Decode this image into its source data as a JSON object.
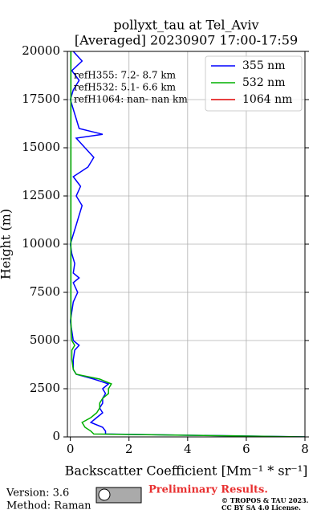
{
  "chart_data": {
    "type": "line",
    "title": "pollyxt_tau at Tel_Aviv",
    "subtitle": "[Averaged] 20230907 17:00-17:59",
    "x_label": "Backscatter Coefficient [Mm⁻¹ * sr⁻¹]",
    "y_label": "Height (m)",
    "annotations": [
      "refH355:  7.2- 8.7 km",
      "refH532:  5.1- 6.6 km",
      "refH1064:  nan- nan km"
    ],
    "y": [
      0,
      150,
      300,
      500,
      750,
      1000,
      1250,
      1500,
      1750,
      2000,
      2250,
      2500,
      2750,
      3000,
      3250,
      3500,
      4000,
      4500,
      4750,
      5000,
      5500,
      6000,
      6500,
      7000,
      7500,
      8000,
      8250,
      8500,
      9000,
      9500,
      10000,
      10500,
      11000,
      11500,
      12000,
      12500,
      13000,
      13500,
      14000,
      14500,
      15000,
      15500,
      15700,
      16000,
      16500,
      17000,
      17500,
      18000,
      18500,
      19000,
      19500,
      20000
    ],
    "series": [
      {
        "name": "355 nm",
        "color": "#0000ff",
        "values": [
          8,
          1.2,
          1.2,
          1.1,
          0.7,
          0.9,
          1.1,
          1.0,
          1.1,
          1.1,
          1.2,
          1.1,
          1.3,
          0.8,
          0.2,
          0.1,
          0.1,
          0.15,
          0.3,
          0.1,
          0.05,
          0.0,
          0.05,
          0.1,
          0.25,
          0.1,
          0.3,
          0.1,
          0.15,
          0.05,
          0.0,
          0.1,
          0.2,
          0.3,
          0.4,
          0.2,
          0.35,
          0.1,
          0.6,
          0.8,
          0.5,
          0.2,
          1.1,
          0.3,
          0.2,
          0.1,
          0.0,
          0.1,
          0.3,
          0.05,
          0.4,
          0.1
        ]
      },
      {
        "name": "532 nm",
        "color": "#00b000",
        "values": [
          8,
          0.8,
          0.7,
          0.5,
          0.4,
          0.7,
          0.9,
          1.0,
          1.0,
          1.1,
          1.3,
          1.3,
          1.4,
          1.0,
          0.2,
          0.1,
          0.05,
          0.05,
          0.15,
          0.05,
          0.03,
          0.02,
          0.02,
          0.02,
          0.02,
          0.02,
          0.02,
          0.02,
          0.02,
          0.02,
          0.02,
          0.02,
          0.02,
          0.02,
          0.02,
          0.02,
          0.02,
          0.02,
          0.02,
          0.02,
          0.02,
          0.02,
          0.02,
          0.02,
          0.02,
          0.02,
          0.02,
          0.02,
          0.02,
          0.02,
          0.02,
          0.02
        ]
      },
      {
        "name": "1064 nm",
        "color": "#e00000",
        "values": [
          null,
          null,
          null,
          null,
          null,
          null,
          null,
          null,
          null,
          null,
          null,
          null,
          null,
          null,
          null,
          null,
          null,
          null,
          null,
          null,
          null,
          null,
          null,
          null,
          null,
          null,
          null,
          null,
          null,
          null,
          null,
          null,
          null,
          null,
          null,
          null,
          null,
          null,
          null,
          null,
          null,
          null,
          null,
          null,
          null,
          null,
          null,
          null,
          null,
          null,
          null,
          null
        ]
      }
    ],
    "xlim": [
      -0.1,
      8
    ],
    "xticks": [
      0,
      2,
      4,
      6,
      8
    ],
    "ylim": [
      0,
      20000
    ],
    "yticks": [
      0,
      2500,
      5000,
      7500,
      10000,
      12500,
      15000,
      17500,
      20000
    ],
    "grid": true,
    "legend": "upper right",
    "footer": {
      "version": "Version: 3.6",
      "method": "Method: Raman",
      "notice": "Preliminary Results.",
      "copyright": "© TROPOS & TAU 2023.",
      "license": "CC BY SA 4.0 License."
    }
  }
}
